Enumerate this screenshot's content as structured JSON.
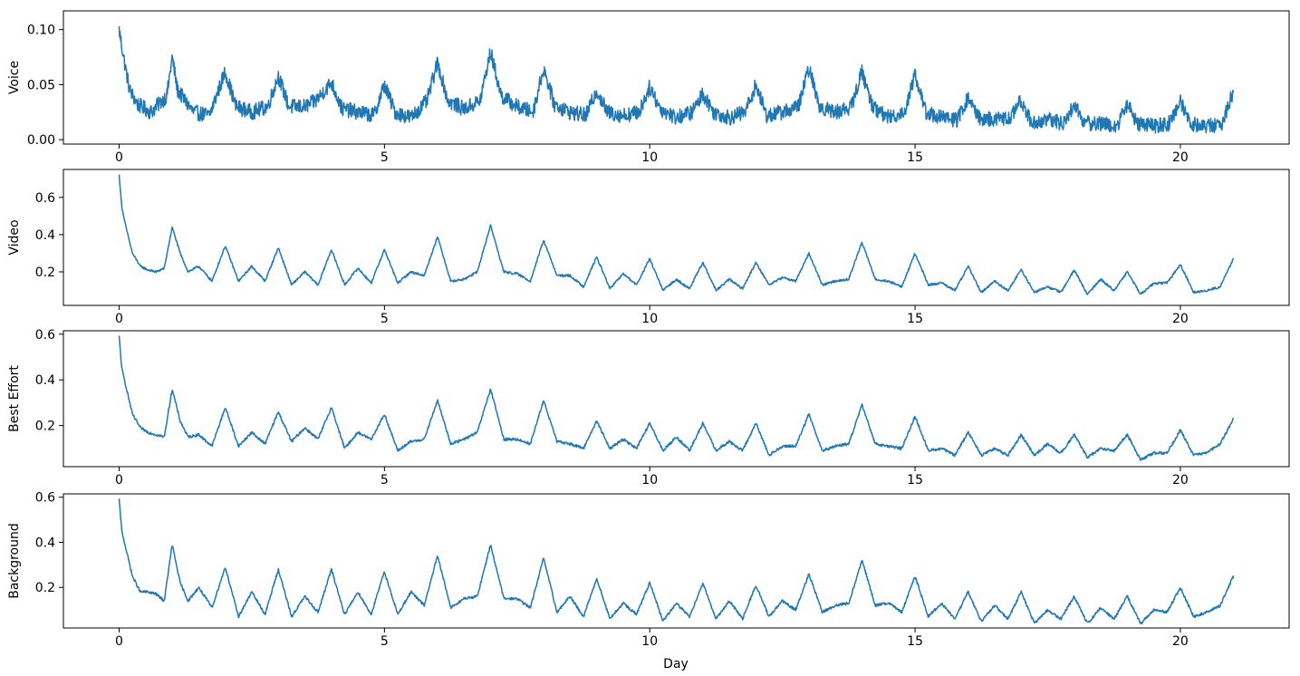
{
  "figure": {
    "xlabel": "Day"
  },
  "colors": {
    "line": "#1f77b4",
    "axes": "#000000",
    "background": "#ffffff"
  },
  "chart_data": [
    {
      "type": "line",
      "ylabel": "Voice",
      "xlim": [
        -1.05,
        22.05
      ],
      "ylim": [
        -0.004,
        0.117
      ],
      "xticks": [
        0,
        5,
        10,
        15,
        20
      ],
      "xtick_labels": [
        "0",
        "5",
        "10",
        "15",
        "20"
      ],
      "yticks": [
        0.0,
        0.05,
        0.1
      ],
      "ytick_labels": [
        "0.00",
        "0.05",
        "0.10"
      ],
      "noise": 0.007,
      "series": [
        {
          "x": [
            0,
            0.05,
            0.12,
            0.2,
            0.35,
            0.6,
            0.9,
            1.0,
            1.1,
            1.4,
            1.7,
            2.0,
            2.2,
            2.5,
            2.8,
            3.0,
            3.2,
            3.5,
            3.7,
            4.0,
            4.2,
            4.5,
            4.8,
            5.0,
            5.2,
            5.5,
            5.8,
            6.0,
            6.2,
            6.5,
            6.8,
            7.0,
            7.2,
            7.5,
            7.8,
            8.0,
            8.2,
            8.5,
            8.8,
            9.0,
            9.2,
            9.5,
            9.8,
            10.0,
            10.2,
            10.5,
            10.8,
            11.0,
            11.2,
            11.5,
            11.8,
            12.0,
            12.2,
            12.5,
            12.8,
            13.0,
            13.2,
            13.5,
            13.8,
            14.0,
            14.2,
            14.5,
            14.8,
            15.0,
            15.2,
            15.5,
            15.8,
            16.0,
            16.2,
            16.5,
            16.8,
            17.0,
            17.2,
            17.5,
            17.8,
            18.0,
            18.2,
            18.5,
            18.8,
            19.0,
            19.2,
            19.5,
            19.8,
            20.0,
            20.2,
            20.5,
            20.8,
            21.0
          ],
          "y": [
            0.1,
            0.085,
            0.065,
            0.045,
            0.032,
            0.025,
            0.04,
            0.075,
            0.045,
            0.025,
            0.022,
            0.062,
            0.03,
            0.025,
            0.03,
            0.058,
            0.03,
            0.03,
            0.035,
            0.052,
            0.028,
            0.025,
            0.022,
            0.05,
            0.025,
            0.02,
            0.035,
            0.07,
            0.035,
            0.028,
            0.035,
            0.08,
            0.04,
            0.03,
            0.025,
            0.065,
            0.032,
            0.025,
            0.022,
            0.045,
            0.025,
            0.022,
            0.025,
            0.048,
            0.028,
            0.02,
            0.025,
            0.042,
            0.025,
            0.02,
            0.025,
            0.05,
            0.022,
            0.025,
            0.03,
            0.065,
            0.03,
            0.025,
            0.03,
            0.062,
            0.03,
            0.02,
            0.025,
            0.06,
            0.025,
            0.02,
            0.018,
            0.038,
            0.02,
            0.018,
            0.02,
            0.036,
            0.015,
            0.018,
            0.015,
            0.032,
            0.015,
            0.015,
            0.012,
            0.032,
            0.015,
            0.012,
            0.015,
            0.035,
            0.015,
            0.012,
            0.015,
            0.045
          ]
        }
      ]
    },
    {
      "type": "line",
      "ylabel": "Video",
      "xlim": [
        -1.05,
        22.05
      ],
      "ylim": [
        0.02,
        0.75
      ],
      "xticks": [
        0,
        5,
        10,
        15,
        20
      ],
      "xtick_labels": [
        "0",
        "5",
        "10",
        "15",
        "20"
      ],
      "yticks": [
        0.2,
        0.4,
        0.6
      ],
      "ytick_labels": [
        "0.2",
        "0.4",
        "0.6"
      ],
      "noise": 0.006,
      "series": [
        {
          "x": [
            0,
            0.05,
            0.12,
            0.25,
            0.4,
            0.55,
            0.7,
            0.85,
            1.0,
            1.15,
            1.3,
            1.5,
            1.75,
            2.0,
            2.25,
            2.5,
            2.75,
            3.0,
            3.25,
            3.5,
            3.75,
            4.0,
            4.25,
            4.5,
            4.75,
            5.0,
            5.25,
            5.5,
            5.75,
            6.0,
            6.25,
            6.5,
            6.75,
            7.0,
            7.25,
            7.5,
            7.75,
            8.0,
            8.25,
            8.5,
            8.75,
            9.0,
            9.25,
            9.5,
            9.75,
            10.0,
            10.25,
            10.5,
            10.75,
            11.0,
            11.25,
            11.5,
            11.75,
            12.0,
            12.25,
            12.5,
            12.75,
            13.0,
            13.25,
            13.5,
            13.75,
            14.0,
            14.25,
            14.5,
            14.75,
            15.0,
            15.25,
            15.5,
            15.75,
            16.0,
            16.25,
            16.5,
            16.75,
            17.0,
            17.25,
            17.5,
            17.75,
            18.0,
            18.25,
            18.5,
            18.75,
            19.0,
            19.25,
            19.5,
            19.75,
            20.0,
            20.25,
            20.5,
            20.75,
            21.0
          ],
          "y": [
            0.72,
            0.55,
            0.45,
            0.3,
            0.23,
            0.21,
            0.2,
            0.22,
            0.44,
            0.3,
            0.2,
            0.23,
            0.15,
            0.34,
            0.15,
            0.23,
            0.15,
            0.33,
            0.13,
            0.2,
            0.13,
            0.32,
            0.13,
            0.22,
            0.14,
            0.32,
            0.14,
            0.2,
            0.18,
            0.39,
            0.15,
            0.16,
            0.2,
            0.45,
            0.2,
            0.19,
            0.15,
            0.37,
            0.18,
            0.18,
            0.12,
            0.28,
            0.11,
            0.19,
            0.13,
            0.27,
            0.1,
            0.16,
            0.11,
            0.25,
            0.1,
            0.16,
            0.11,
            0.25,
            0.13,
            0.17,
            0.15,
            0.3,
            0.13,
            0.15,
            0.16,
            0.36,
            0.16,
            0.15,
            0.12,
            0.3,
            0.13,
            0.14,
            0.1,
            0.23,
            0.09,
            0.15,
            0.1,
            0.21,
            0.09,
            0.12,
            0.09,
            0.21,
            0.08,
            0.16,
            0.1,
            0.2,
            0.08,
            0.14,
            0.14,
            0.24,
            0.09,
            0.1,
            0.12,
            0.27
          ]
        }
      ]
    },
    {
      "type": "line",
      "ylabel": "Best Effort",
      "xlim": [
        -1.05,
        22.05
      ],
      "ylim": [
        0.02,
        0.615
      ],
      "xticks": [
        0,
        5,
        10,
        15,
        20
      ],
      "xtick_labels": [
        "0",
        "5",
        "10",
        "15",
        "20"
      ],
      "yticks": [
        0.2,
        0.4,
        0.6
      ],
      "ytick_labels": [
        "0.2",
        "0.4",
        "0.6"
      ],
      "noise": 0.006,
      "series": [
        {
          "x": [
            0,
            0.05,
            0.12,
            0.25,
            0.4,
            0.55,
            0.7,
            0.85,
            1.0,
            1.15,
            1.3,
            1.5,
            1.75,
            2.0,
            2.25,
            2.5,
            2.75,
            3.0,
            3.25,
            3.5,
            3.75,
            4.0,
            4.25,
            4.5,
            4.75,
            5.0,
            5.25,
            5.5,
            5.75,
            6.0,
            6.25,
            6.5,
            6.75,
            7.0,
            7.25,
            7.5,
            7.75,
            8.0,
            8.25,
            8.5,
            8.75,
            9.0,
            9.25,
            9.5,
            9.75,
            10.0,
            10.25,
            10.5,
            10.75,
            11.0,
            11.25,
            11.5,
            11.75,
            12.0,
            12.25,
            12.5,
            12.75,
            13.0,
            13.25,
            13.5,
            13.75,
            14.0,
            14.25,
            14.5,
            14.75,
            15.0,
            15.25,
            15.5,
            15.75,
            16.0,
            16.25,
            16.5,
            16.75,
            17.0,
            17.25,
            17.5,
            17.75,
            18.0,
            18.25,
            18.5,
            18.75,
            19.0,
            19.25,
            19.5,
            19.75,
            20.0,
            20.25,
            20.5,
            20.75,
            21.0
          ],
          "y": [
            0.59,
            0.45,
            0.38,
            0.25,
            0.19,
            0.17,
            0.16,
            0.15,
            0.36,
            0.22,
            0.15,
            0.16,
            0.11,
            0.28,
            0.11,
            0.17,
            0.12,
            0.26,
            0.13,
            0.19,
            0.14,
            0.28,
            0.1,
            0.17,
            0.14,
            0.25,
            0.09,
            0.13,
            0.14,
            0.31,
            0.12,
            0.14,
            0.17,
            0.36,
            0.14,
            0.14,
            0.12,
            0.31,
            0.13,
            0.12,
            0.1,
            0.22,
            0.1,
            0.14,
            0.1,
            0.21,
            0.09,
            0.15,
            0.09,
            0.21,
            0.09,
            0.13,
            0.09,
            0.21,
            0.07,
            0.11,
            0.11,
            0.25,
            0.09,
            0.11,
            0.12,
            0.29,
            0.12,
            0.11,
            0.1,
            0.24,
            0.09,
            0.1,
            0.07,
            0.17,
            0.07,
            0.1,
            0.07,
            0.16,
            0.07,
            0.12,
            0.08,
            0.16,
            0.06,
            0.1,
            0.09,
            0.16,
            0.05,
            0.08,
            0.08,
            0.18,
            0.07,
            0.08,
            0.12,
            0.23
          ]
        }
      ]
    },
    {
      "type": "line",
      "ylabel": "Background",
      "xlim": [
        -1.05,
        22.05
      ],
      "ylim": [
        0.02,
        0.615
      ],
      "xticks": [
        0,
        5,
        10,
        15,
        20
      ],
      "xtick_labels": [
        "0",
        "5",
        "10",
        "15",
        "20"
      ],
      "yticks": [
        0.2,
        0.4,
        0.6
      ],
      "ytick_labels": [
        "0.2",
        "0.4",
        "0.6"
      ],
      "noise": 0.006,
      "series": [
        {
          "x": [
            0,
            0.05,
            0.12,
            0.25,
            0.4,
            0.55,
            0.7,
            0.85,
            1.0,
            1.15,
            1.3,
            1.5,
            1.75,
            2.0,
            2.25,
            2.5,
            2.75,
            3.0,
            3.25,
            3.5,
            3.75,
            4.0,
            4.25,
            4.5,
            4.75,
            5.0,
            5.25,
            5.5,
            5.75,
            6.0,
            6.25,
            6.5,
            6.75,
            7.0,
            7.25,
            7.5,
            7.75,
            8.0,
            8.25,
            8.5,
            8.75,
            9.0,
            9.25,
            9.5,
            9.75,
            10.0,
            10.25,
            10.5,
            10.75,
            11.0,
            11.25,
            11.5,
            11.75,
            12.0,
            12.25,
            12.5,
            12.75,
            13.0,
            13.25,
            13.5,
            13.75,
            14.0,
            14.25,
            14.5,
            14.75,
            15.0,
            15.25,
            15.5,
            15.75,
            16.0,
            16.25,
            16.5,
            16.75,
            17.0,
            17.25,
            17.5,
            17.75,
            18.0,
            18.25,
            18.5,
            18.75,
            19.0,
            19.25,
            19.5,
            19.75,
            20.0,
            20.25,
            20.5,
            20.75,
            21.0
          ],
          "y": [
            0.59,
            0.45,
            0.38,
            0.25,
            0.18,
            0.18,
            0.17,
            0.14,
            0.39,
            0.22,
            0.14,
            0.2,
            0.11,
            0.29,
            0.07,
            0.18,
            0.08,
            0.28,
            0.07,
            0.16,
            0.09,
            0.28,
            0.08,
            0.18,
            0.08,
            0.27,
            0.08,
            0.18,
            0.12,
            0.34,
            0.11,
            0.15,
            0.16,
            0.39,
            0.15,
            0.15,
            0.11,
            0.33,
            0.09,
            0.16,
            0.07,
            0.24,
            0.06,
            0.13,
            0.08,
            0.22,
            0.05,
            0.13,
            0.07,
            0.22,
            0.06,
            0.14,
            0.06,
            0.21,
            0.07,
            0.14,
            0.1,
            0.26,
            0.09,
            0.12,
            0.13,
            0.32,
            0.12,
            0.13,
            0.09,
            0.25,
            0.07,
            0.13,
            0.06,
            0.18,
            0.05,
            0.12,
            0.06,
            0.18,
            0.04,
            0.1,
            0.06,
            0.16,
            0.04,
            0.11,
            0.06,
            0.16,
            0.04,
            0.1,
            0.09,
            0.2,
            0.07,
            0.09,
            0.12,
            0.25
          ]
        }
      ]
    }
  ]
}
